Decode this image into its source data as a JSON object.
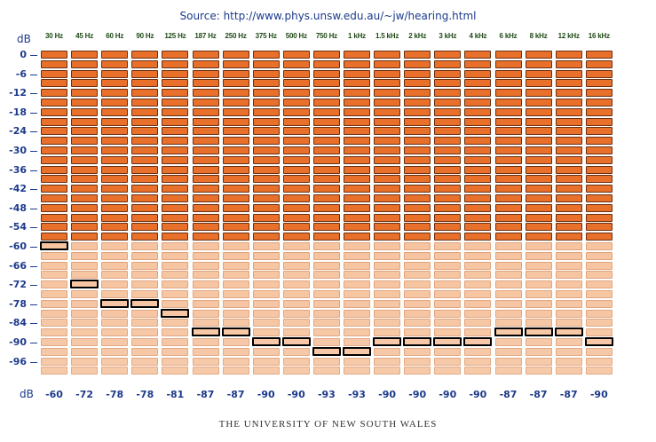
{
  "source": {
    "prefix": "Source: ",
    "url": "http://www.phys.unsw.edu.au/~jw/hearing.html"
  },
  "axis": {
    "top_unit": "dB",
    "bottom_unit": "dB",
    "ticks": [
      "0",
      "-6",
      "-12",
      "-18",
      "-24",
      "-30",
      "-36",
      "-42",
      "-48",
      "-54",
      "-60",
      "-66",
      "-72",
      "-78",
      "-84",
      "-90",
      "-96"
    ]
  },
  "footer": "THE UNIVERSITY OF NEW SOUTH WALES",
  "colors": {
    "dark": "#e8702a",
    "light": "#f6c4a0",
    "outline": "#6b2f10"
  },
  "chart_data": {
    "type": "table",
    "title": "",
    "ylabel": "dB",
    "ylim": [
      -99,
      0
    ],
    "levels_db": [
      0,
      -3,
      -6,
      -9,
      -12,
      -15,
      -18,
      -21,
      -24,
      -27,
      -30,
      -33,
      -36,
      -39,
      -42,
      -45,
      -48,
      -51,
      -54,
      -57,
      -60,
      -63,
      -66,
      -69,
      -72,
      -75,
      -78,
      -81,
      -84,
      -87,
      -90,
      -93,
      -96,
      -99
    ],
    "categories": [
      "30 Hz",
      "45 Hz",
      "60 Hz",
      "90 Hz",
      "125 Hz",
      "187 Hz",
      "250 Hz",
      "375 Hz",
      "500 Hz",
      "750 Hz",
      "1 kHz",
      "1.5 kHz",
      "2 kHz",
      "3 kHz",
      "4 kHz",
      "6 kHz",
      "8 kHz",
      "12 kHz",
      "16 kHz"
    ],
    "thresholds": [
      "-60",
      "-72",
      "-78",
      "-78",
      "-81",
      "-87",
      "-87",
      "-90",
      "-90",
      "-93",
      "-93",
      "-90",
      "-90",
      "-90",
      "-90",
      "-87",
      "-87",
      "-87",
      "-90"
    ]
  }
}
